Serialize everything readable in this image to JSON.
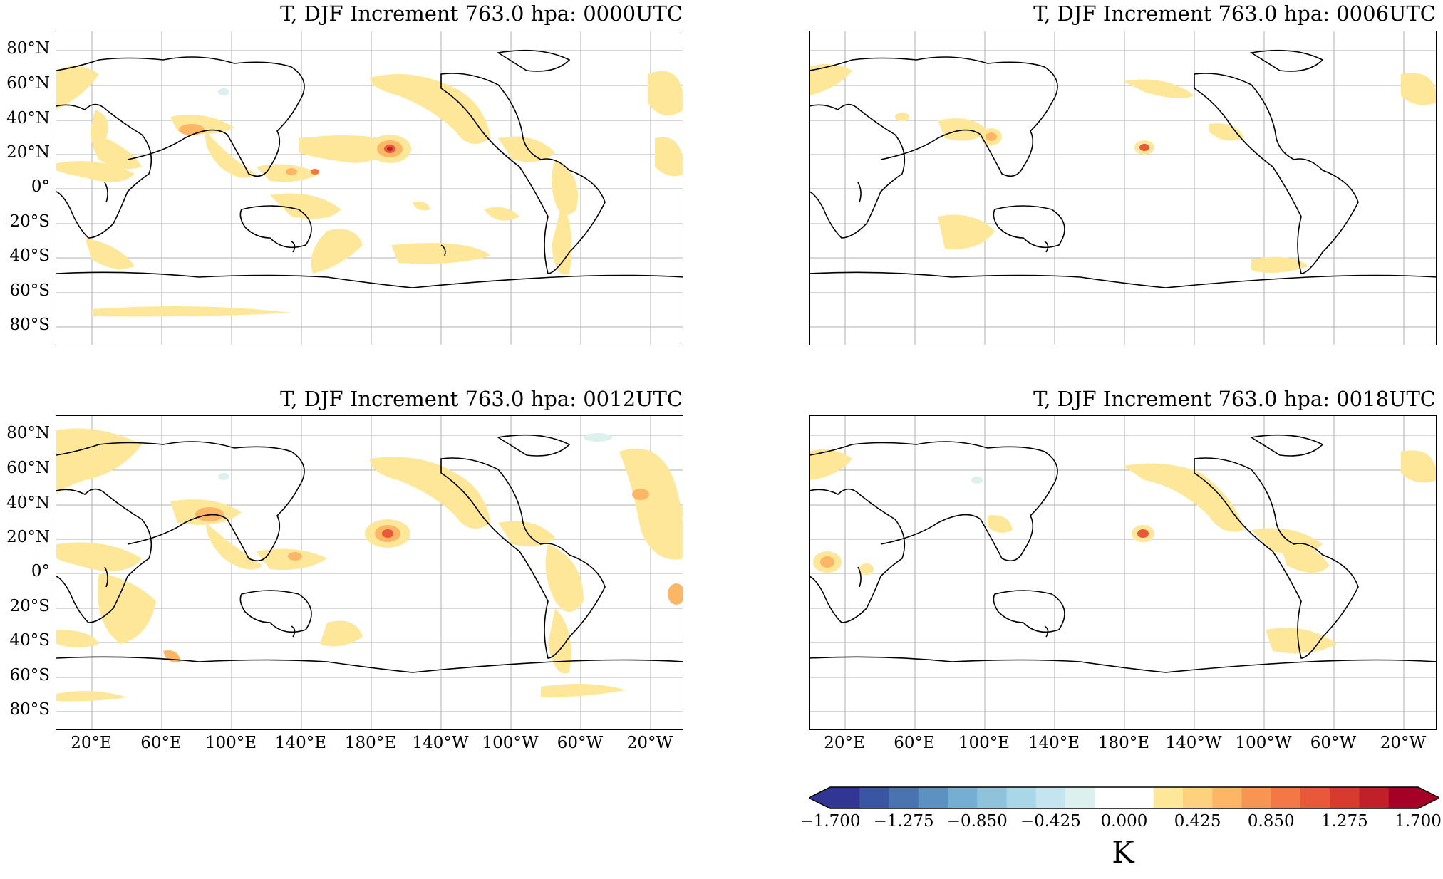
{
  "figure": {
    "panels": [
      {
        "title": "T, DJF Increment 763.0 hpa:  0000UTC"
      },
      {
        "title": "T, DJF Increment 763.0 hpa:  0006UTC"
      },
      {
        "title": "T, DJF Increment 763.0 hpa:  0012UTC"
      },
      {
        "title": "T, DJF Increment 763.0 hpa:  0018UTC"
      }
    ],
    "lat_labels": [
      "80°N",
      "60°N",
      "40°N",
      "20°N",
      "0°",
      "20°S",
      "40°S",
      "60°S",
      "80°S"
    ],
    "lon_labels": [
      "20°E",
      "60°E",
      "100°E",
      "140°E",
      "180°E",
      "140°W",
      "100°W",
      "60°W",
      "20°W"
    ],
    "colorbar": {
      "ticks": [
        "−1.700",
        "−1.275",
        "−0.850",
        "−0.425",
        "0.000",
        "0.425",
        "0.850",
        "1.275",
        "1.700"
      ],
      "label": "K",
      "colors": [
        "#313695",
        "#3a55a2",
        "#4a74b0",
        "#5b92c2",
        "#74aed2",
        "#8fc3dc",
        "#aad7e8",
        "#c4e5ef",
        "#dcf0ee",
        "#ffffff",
        "#ffffff",
        "#fee799",
        "#fed17e",
        "#fdb566",
        "#f99553",
        "#f47745",
        "#e85839",
        "#d73b2e",
        "#c02028",
        "#a50026"
      ],
      "range": [
        -1.7,
        1.7
      ]
    },
    "projection": "PlateCarree, central longitude 180°E-160°W"
  }
}
